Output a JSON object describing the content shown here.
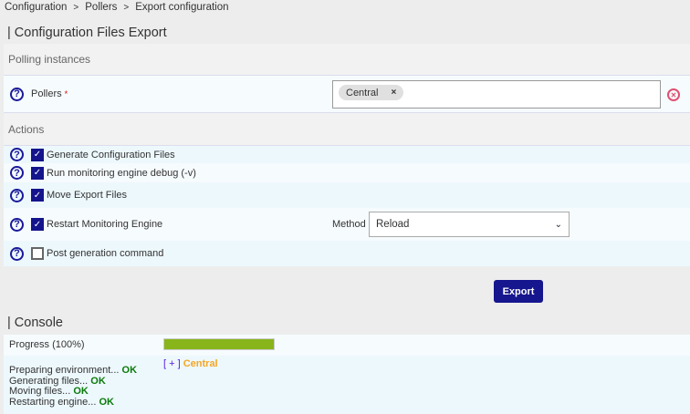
{
  "breadcrumb": [
    "Configuration",
    "Pollers",
    "Export configuration"
  ],
  "breadcrumb_sep": ">",
  "title": "| Configuration Files Export",
  "polling": {
    "header": "Polling instances",
    "label": "Pollers",
    "required": "*",
    "selected": [
      "Central"
    ],
    "tag_remove": "×",
    "clear_icon": "x-circle-icon"
  },
  "actions": {
    "header": "Actions",
    "items": [
      {
        "label": "Generate Configuration Files",
        "checked": true
      },
      {
        "label": "Run monitoring engine debug (-v)",
        "checked": true
      },
      {
        "label": "Move Export Files",
        "checked": true
      },
      {
        "label": "Restart Monitoring Engine",
        "checked": true
      },
      {
        "label": "Post generation command",
        "checked": false
      }
    ],
    "method_label": "Method",
    "method_value": "Reload"
  },
  "export_button": "Export",
  "console": {
    "title": "| Console",
    "progress_label": "Progress",
    "progress_text": "(100%)",
    "progress": 100,
    "poller_toggle": "[ + ]",
    "poller_name": "Central",
    "log": [
      {
        "text": "Preparing environment...",
        "status": "OK"
      },
      {
        "text": "Generating files...",
        "status": "OK"
      },
      {
        "text": "Moving files...",
        "status": "OK"
      },
      {
        "text": "Restarting engine...",
        "status": "OK"
      }
    ]
  },
  "colors": {
    "accent": "#16168e",
    "progress": "#87b51a",
    "ok": "#0a7a0a",
    "poller": "#f5a623"
  }
}
